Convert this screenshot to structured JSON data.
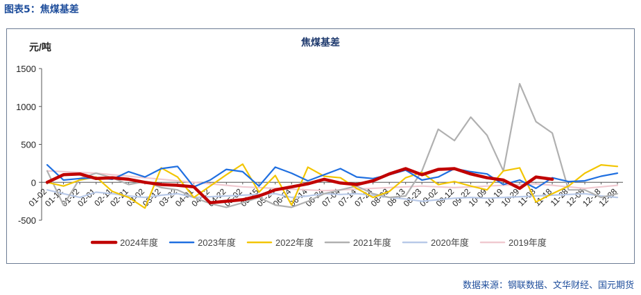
{
  "figure_label": "图表5：焦煤基差",
  "source_note": "数据来源：钢联数据、文华财经、国元期货",
  "chart_data": {
    "type": "line",
    "title": "焦煤基差",
    "ylabel": "元/吨",
    "ylim": [
      -500,
      1500
    ],
    "yticks": [
      1500,
      1000,
      500,
      0,
      -500
    ],
    "grid": false,
    "legend_position": "bottom",
    "x": [
      "01-02",
      "01-12",
      "01-22",
      "02-01",
      "02-11",
      "02-21",
      "03-02",
      "03-12",
      "03-22",
      "04-01",
      "04-12",
      "04-22",
      "05-02",
      "05-15",
      "05-25",
      "06-04",
      "06-14",
      "06-24",
      "07-04",
      "07-14",
      "07-24",
      "08-03",
      "08-13",
      "08-23",
      "09-02",
      "09-12",
      "09-22",
      "10-09",
      "10-19",
      "10-29",
      "11-08",
      "11-18",
      "11-28",
      "12-08",
      "12-18",
      "12-28"
    ],
    "series": [
      {
        "name": "2024年度",
        "color": "#c00000",
        "values": [
          0,
          100,
          110,
          50,
          60,
          40,
          0,
          -30,
          -40,
          -60,
          -270,
          -250,
          -230,
          -180,
          -100,
          -60,
          -20,
          40,
          -10,
          -30,
          20,
          110,
          180,
          100,
          170,
          180,
          110,
          60,
          30,
          -80,
          70,
          40,
          null,
          null,
          null,
          null
        ]
      },
      {
        "name": "2023年度",
        "color": "#1f6fe0",
        "values": [
          230,
          30,
          50,
          60,
          40,
          140,
          70,
          180,
          210,
          -60,
          30,
          170,
          140,
          -50,
          200,
          120,
          20,
          100,
          180,
          70,
          50,
          100,
          160,
          30,
          70,
          180,
          140,
          110,
          -30,
          30,
          -80,
          60,
          10,
          20,
          80,
          120
        ]
      },
      {
        "name": "2022年度",
        "color": "#f2c500",
        "values": [
          0,
          -50,
          30,
          70,
          -120,
          -200,
          -340,
          190,
          70,
          -200,
          -50,
          100,
          240,
          -130,
          90,
          -300,
          200,
          80,
          60,
          -80,
          -200,
          -120,
          60,
          130,
          -30,
          10,
          -50,
          -100,
          150,
          190,
          -260,
          -150,
          -50,
          120,
          230,
          210
        ]
      },
      {
        "name": "2021年度",
        "color": "#b0b0b0",
        "values": [
          150,
          -300,
          50,
          120,
          60,
          -30,
          10,
          -70,
          -100,
          -200,
          -280,
          -330,
          -270,
          -200,
          -300,
          -330,
          -250,
          -150,
          -100,
          -50,
          -150,
          -200,
          -180,
          150,
          700,
          550,
          860,
          620,
          150,
          1300,
          800,
          650,
          -100,
          -100,
          -200,
          -150
        ]
      },
      {
        "name": "2020年度",
        "color": "#b8c9e8",
        "values": [
          -100,
          -150,
          -200,
          -130,
          -150,
          -180,
          -200,
          -170,
          -150,
          -200,
          -190,
          -180,
          -170,
          -160,
          -150,
          -200,
          -180,
          -150,
          -160,
          -150,
          -170,
          -200,
          -220,
          -250,
          -230,
          -210,
          -200,
          -210,
          -200,
          -190,
          -180,
          -170,
          -160,
          -150,
          -180,
          -200
        ]
      },
      {
        "name": "2019年度",
        "color": "#f0c9d0",
        "values": [
          150,
          140,
          130,
          120,
          100,
          80,
          60,
          40,
          20,
          0,
          -20,
          -40,
          -60,
          -70,
          -80,
          -90,
          -100,
          -110,
          -100,
          -90,
          -80,
          -70,
          -60,
          -50,
          -60,
          -70,
          -60,
          -50,
          -40,
          -30,
          -20,
          -40,
          -60,
          -80,
          -60,
          -40
        ]
      }
    ]
  }
}
